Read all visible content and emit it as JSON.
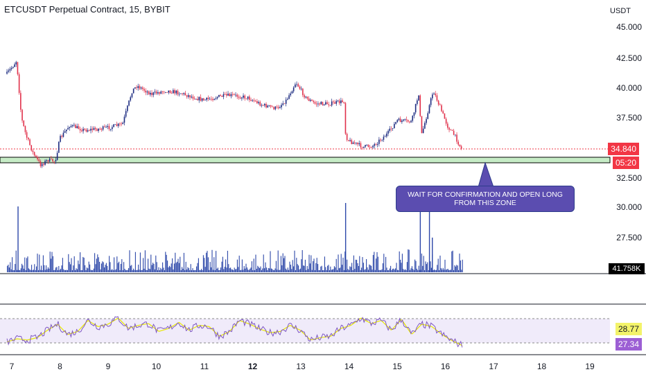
{
  "chart_title": "ETCUSDT Perpetual Contract, 15, BYBIT",
  "currency_label": "USDT",
  "price_axis_labels": [
    "45.000",
    "42.500",
    "40.000",
    "37.500",
    "32.500",
    "30.000",
    "27.500"
  ],
  "last_price": "34.840",
  "countdown": "05:20",
  "volume_label": "41.758K",
  "rsi_values": [
    "28.77",
    "27.34"
  ],
  "annotation": "WAIT FOR CONFIRMATION AND OPEN LONG FROM THIS ZONE",
  "colors": {
    "up": "#1b2a80",
    "down": "#e0304a",
    "volume": "#2b46a8",
    "zone_fill": "#c6ecc6",
    "zone_border": "#000000",
    "rsi_line": "#7e57c2",
    "rsi_ma": "#e8e800",
    "rsi_band": "#f0ebfa",
    "price_tag": "#f23645",
    "rsi_tag_1": "#f3f36a",
    "rsi_tag_2": "#9c5fd4"
  },
  "chart_data": {
    "type": "candlestick",
    "title": "ETCUSDT Perpetual Contract, 15, BYBIT",
    "x_tick_labels": [
      "7",
      "8",
      "9",
      "10",
      "11",
      "12",
      "13",
      "14",
      "15",
      "16",
      "17",
      "18",
      "19"
    ],
    "y_tick_labels": [
      "45.000",
      "42.500",
      "40.000",
      "37.500",
      "32.500",
      "30.000",
      "27.500"
    ],
    "ylim": [
      27.0,
      45.5
    ],
    "support_zone": [
      33.7,
      34.1
    ],
    "last_price": 34.84,
    "price_path": {
      "x": [
        6.9,
        7.05,
        7.1,
        7.2,
        7.3,
        7.45,
        7.6,
        7.75,
        7.9,
        8.0,
        8.2,
        8.5,
        8.8,
        9.0,
        9.3,
        9.5,
        9.6,
        9.9,
        10.2,
        10.5,
        10.8,
        11.0,
        11.3,
        11.6,
        11.9,
        12.2,
        12.5,
        12.7,
        12.9,
        13.1,
        13.3,
        13.6,
        13.9,
        13.93,
        14.0,
        14.3,
        14.5,
        14.8,
        15.0,
        15.3,
        15.45,
        15.5,
        15.6,
        15.75,
        15.9,
        16.05,
        16.2,
        16.35
      ],
      "y": [
        41.2,
        42.0,
        42.3,
        37.5,
        36.0,
        34.5,
        33.6,
        34.0,
        33.9,
        35.8,
        36.9,
        36.5,
        36.6,
        36.7,
        37.0,
        39.8,
        40.2,
        39.5,
        39.8,
        39.6,
        39.2,
        39.0,
        39.3,
        39.4,
        39.2,
        38.6,
        38.3,
        39.0,
        40.5,
        39.2,
        38.7,
        38.7,
        38.9,
        36.0,
        35.6,
        35.1,
        35.2,
        36.2,
        37.3,
        37.2,
        39.6,
        36.0,
        37.5,
        39.8,
        38.3,
        36.8,
        36.0,
        34.8
      ]
    },
    "volume": {
      "label": "41.758K",
      "spikes": [
        {
          "x": 7.12,
          "h": 0.95
        },
        {
          "x": 13.92,
          "h": 1.0
        },
        {
          "x": 15.47,
          "h": 0.95
        },
        {
          "x": 15.66,
          "h": 0.95
        },
        {
          "x": 15.72,
          "h": 0.5
        }
      ]
    },
    "rsi": {
      "upper": 70,
      "lower": 30,
      "values": [
        "28.77",
        "27.34"
      ],
      "rsi_path": [
        33,
        38,
        36,
        40,
        52,
        62,
        45,
        50,
        68,
        58,
        62,
        72,
        55,
        60,
        63,
        50,
        55,
        65,
        52,
        60,
        58,
        42,
        50,
        68,
        62,
        54,
        48,
        50,
        60,
        52,
        36,
        40,
        42,
        55,
        60,
        72,
        63,
        68,
        52,
        70,
        45,
        62,
        58,
        45,
        35,
        27
      ]
    }
  }
}
